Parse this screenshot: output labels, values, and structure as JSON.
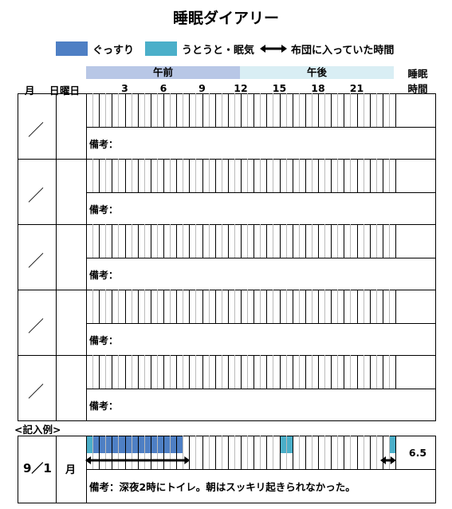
{
  "title": "睡眠ダイアリー",
  "legend": {
    "deep_sleep": "ぐっすり",
    "doze": "うとうと・眠気",
    "in_bed": "布団に入っていた時間",
    "deep_color": "#4e7fc4",
    "doze_color": "#4bafc9"
  },
  "header": {
    "month": "月",
    "day": "日",
    "weekday": "曜日",
    "am": "午前",
    "pm": "午後",
    "sleep_time_1": "睡眠",
    "sleep_time_2": "時間",
    "hours": [
      "3",
      "6",
      "9",
      "12",
      "15",
      "18",
      "21"
    ]
  },
  "rows": [
    {
      "date": "／",
      "remarks_label": "備考："
    },
    {
      "date": "／",
      "remarks_label": "備考："
    },
    {
      "date": "／",
      "remarks_label": "備考："
    },
    {
      "date": "／",
      "remarks_label": "備考："
    },
    {
      "date": "／",
      "remarks_label": "備考："
    }
  ],
  "example": {
    "label": "<記入例>",
    "date": "9／1",
    "weekday": "月",
    "hours": "6.5",
    "remarks": "備考：深夜2時にトイレ。朝はスッキリ起きられなかった。"
  }
}
